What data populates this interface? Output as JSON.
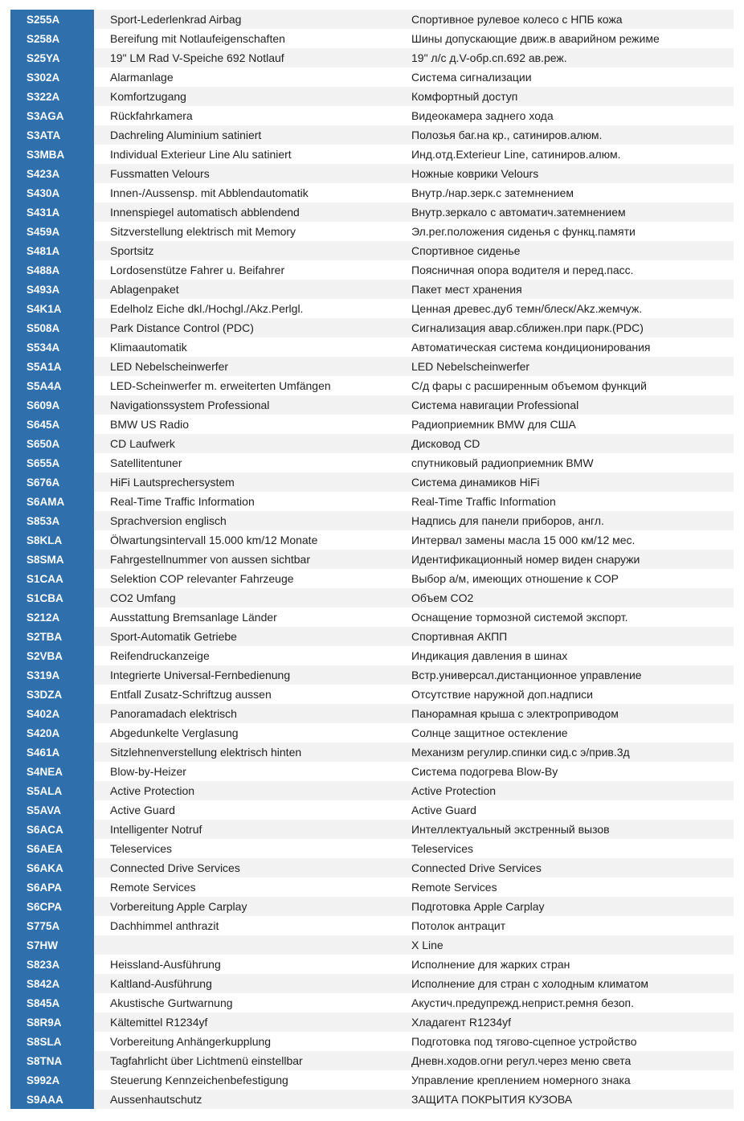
{
  "options": [
    {
      "code": "S255A",
      "de": "Sport-Lederlenkrad Airbag",
      "ru": "Спортивное рулевое колесо с НПБ кожа"
    },
    {
      "code": "S258A",
      "de": "Bereifung mit Notlaufeigenschaften",
      "ru": "Шины допускающие движ.в аварийном режиме"
    },
    {
      "code": "S25YA",
      "de": "19\" LM Rad V-Speiche 692 Notlauf",
      "ru": "19\" л/с д.V-обр.сп.692 ав.реж."
    },
    {
      "code": "S302A",
      "de": "Alarmanlage",
      "ru": "Система сигнализации"
    },
    {
      "code": "S322A",
      "de": "Komfortzugang",
      "ru": "Комфортный доступ"
    },
    {
      "code": "S3AGA",
      "de": "Rückfahrkamera",
      "ru": "Видеокамера заднего хода"
    },
    {
      "code": "S3ATA",
      "de": "Dachreling Aluminium satiniert",
      "ru": "Полозья баг.на кр., сатиниров.алюм."
    },
    {
      "code": "S3MBA",
      "de": "Individual Exterieur Line Alu satiniert",
      "ru": "Инд.отд.Exterieur Line, сатиниров.алюм."
    },
    {
      "code": "S423A",
      "de": "Fussmatten Velours",
      "ru": "Ножные коврики Velours"
    },
    {
      "code": "S430A",
      "de": "Innen-/Aussensp. mit Abblendautomatik",
      "ru": "Внутр./нар.зерк.с затемнением"
    },
    {
      "code": "S431A",
      "de": "Innenspiegel automatisch abblendend",
      "ru": "Внутр.зеркало с автоматич.затемнением"
    },
    {
      "code": "S459A",
      "de": "Sitzverstellung elektrisch mit Memory",
      "ru": "Эл.рег.положения сиденья с функц.памяти"
    },
    {
      "code": "S481A",
      "de": "Sportsitz",
      "ru": "Спортивное сиденье"
    },
    {
      "code": "S488A",
      "de": "Lordosenstütze Fahrer u. Beifahrer",
      "ru": "Поясничная опора водителя и перед.пасс."
    },
    {
      "code": "S493A",
      "de": "Ablagenpaket",
      "ru": "Пакет мест хранения"
    },
    {
      "code": "S4K1A",
      "de": "Edelholz Eiche dkl./Hochgl./Akz.Perlgl.",
      "ru": "Ценная древес.дуб темн/блеск/Akz.жемчуж."
    },
    {
      "code": "S508A",
      "de": "Park Distance Control (PDC)",
      "ru": "Сигнализация авар.сближен.при парк.(PDC)"
    },
    {
      "code": "S534A",
      "de": "Klimaautomatik",
      "ru": "Автоматическая система кондиционирования"
    },
    {
      "code": "S5A1A",
      "de": "LED Nebelscheinwerfer",
      "ru": "LED Nebelscheinwerfer"
    },
    {
      "code": "S5A4A",
      "de": "LED-Scheinwerfer m. erweiterten Umfängen",
      "ru": "С/д фары с расширенным объемом функций"
    },
    {
      "code": "S609A",
      "de": "Navigationssystem Professional",
      "ru": "Система навигации Professional"
    },
    {
      "code": "S645A",
      "de": "BMW US Radio",
      "ru": "Радиоприемник BMW для США"
    },
    {
      "code": "S650A",
      "de": "CD Laufwerk",
      "ru": "Дисковод CD"
    },
    {
      "code": "S655A",
      "de": "Satellitentuner",
      "ru": "спутниковый радиоприемник BMW"
    },
    {
      "code": "S676A",
      "de": "HiFi Lautsprechersystem",
      "ru": "Система динамиков HiFi"
    },
    {
      "code": "S6AMA",
      "de": "Real-Time Traffic Information",
      "ru": "Real-Time Traffic Information"
    },
    {
      "code": "S853A",
      "de": "Sprachversion englisch",
      "ru": "Надпись для панели приборов, англ."
    },
    {
      "code": "S8KLA",
      "de": "Ölwartungsintervall 15.000 km/12 Monate",
      "ru": "Интервал замены масла 15 000 км/12 мес."
    },
    {
      "code": "S8SMA",
      "de": "Fahrgestellnummer von aussen sichtbar",
      "ru": "Идентификационный номер виден снаружи"
    },
    {
      "code": "S1CAA",
      "de": "Selektion COP relevanter Fahrzeuge",
      "ru": "Выбор а/м, имеющих отношение к COP"
    },
    {
      "code": "S1CBA",
      "de": "CO2 Umfang",
      "ru": "Объем CO2"
    },
    {
      "code": "S212A",
      "de": "Ausstattung Bremsanlage Länder",
      "ru": "Оснащение тормозной системой экспорт."
    },
    {
      "code": "S2TBA",
      "de": "Sport-Automatik Getriebe",
      "ru": "Спортивная АКПП"
    },
    {
      "code": "S2VBA",
      "de": "Reifendruckanzeige",
      "ru": "Индикация давления в шинах"
    },
    {
      "code": "S319A",
      "de": "Integrierte Universal-Fernbedienung",
      "ru": "Встр.универсал.дистанционное управление"
    },
    {
      "code": "S3DZA",
      "de": "Entfall Zusatz-Schriftzug aussen",
      "ru": "Отсутствие наружной доп.надписи"
    },
    {
      "code": "S402A",
      "de": "Panoramadach elektrisch",
      "ru": "Панорамная крыша с электроприводом"
    },
    {
      "code": "S420A",
      "de": "Abgedunkelte Verglasung",
      "ru": "Солнце защитное остекление"
    },
    {
      "code": "S461A",
      "de": "Sitzlehnenverstellung elektrisch hinten",
      "ru": "Механизм регулир.спинки сид.с э/прив.3д"
    },
    {
      "code": "S4NEA",
      "de": "Blow-by-Heizer",
      "ru": "Система подогрева Blow-By"
    },
    {
      "code": "S5ALA",
      "de": "Active Protection",
      "ru": "Active Protection"
    },
    {
      "code": "S5AVA",
      "de": "Active Guard",
      "ru": "Active Guard"
    },
    {
      "code": "S6ACA",
      "de": "Intelligenter Notruf",
      "ru": "Интеллектуальный экстренный вызов"
    },
    {
      "code": "S6AEA",
      "de": "Teleservices",
      "ru": "Teleservices"
    },
    {
      "code": "S6AKA",
      "de": "Connected Drive Services",
      "ru": "Connected Drive Services"
    },
    {
      "code": "S6APA",
      "de": "Remote Services",
      "ru": "Remote Services"
    },
    {
      "code": "S6CPA",
      "de": "Vorbereitung Apple Carplay",
      "ru": "Подготовка Apple Carplay"
    },
    {
      "code": "S775A",
      "de": "Dachhimmel anthrazit",
      "ru": "Потолок антрацит"
    },
    {
      "code": "S7HW",
      "de": "",
      "ru": "X Line"
    },
    {
      "code": "S823A",
      "de": "Heissland-Ausführung",
      "ru": "Исполнение для жарких стран"
    },
    {
      "code": "S842A",
      "de": "Kaltland-Ausführung",
      "ru": "Исполнение для стран с холодным климатом"
    },
    {
      "code": "S845A",
      "de": "Akustische Gurtwarnung",
      "ru": "Акустич.предупрежд.неприст.ремня безоп."
    },
    {
      "code": "S8R9A",
      "de": "Kältemittel R1234yf",
      "ru": "Хладагент R1234yf"
    },
    {
      "code": "S8SLA",
      "de": "Vorbereitung Anhängerkupplung",
      "ru": "Подготовка под тягово-сцепное устройство"
    },
    {
      "code": "S8TNA",
      "de": "Tagfahrlicht über Lichtmenü einstellbar",
      "ru": "Дневн.ходов.огни регул.через меню света"
    },
    {
      "code": "S992A",
      "de": "Steuerung Kennzeichenbefestigung",
      "ru": "Управление креплением номерного знака"
    },
    {
      "code": "S9AAA",
      "de": "Aussenhautschutz",
      "ru": "ЗАЩИТА ПОКРЫТИЯ КУЗОВА"
    }
  ],
  "colors": {
    "code_bg": "#2f6fac",
    "code_text": "#ffffff",
    "stripe": "#f2f2f2",
    "text": "#222222"
  }
}
